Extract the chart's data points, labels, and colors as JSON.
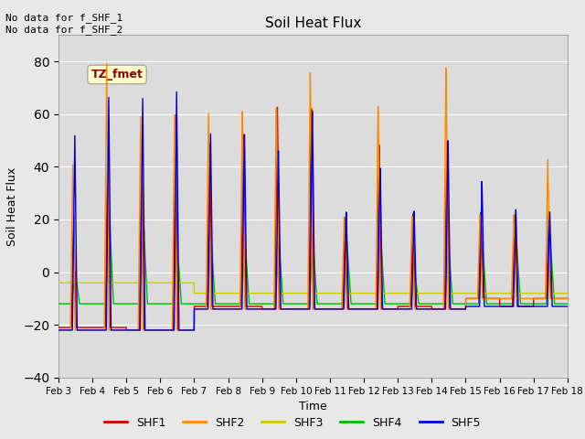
{
  "title": "Soil Heat Flux",
  "xlabel": "Time",
  "ylabel": "Soil Heat Flux",
  "ylim": [
    -40,
    90
  ],
  "yticks": [
    -40,
    -20,
    0,
    20,
    40,
    60,
    80
  ],
  "xtick_labels": [
    "Feb 3",
    "Feb 4",
    "Feb 5",
    "Feb 6",
    "Feb 7",
    "Feb 8",
    "Feb 9",
    "Feb 10",
    "Feb 11",
    "Feb 12",
    "Feb 13",
    "Feb 14",
    "Feb 15",
    "Feb 16",
    "Feb 17",
    "Feb 18"
  ],
  "annotation_text": "No data for f_SHF_1\nNo data for f_SHF_2",
  "tz_label": "TZ_fmet",
  "series_colors": {
    "SHF1": "#cc0000",
    "SHF2": "#ff8800",
    "SHF3": "#cccc00",
    "SHF4": "#00bb00",
    "SHF5": "#0000dd"
  },
  "series_labels": [
    "SHF1",
    "SHF2",
    "SHF3",
    "SHF4",
    "SHF5"
  ],
  "fig_bg_color": "#e8e8e8",
  "plot_bg_color": "#dcdcdc"
}
